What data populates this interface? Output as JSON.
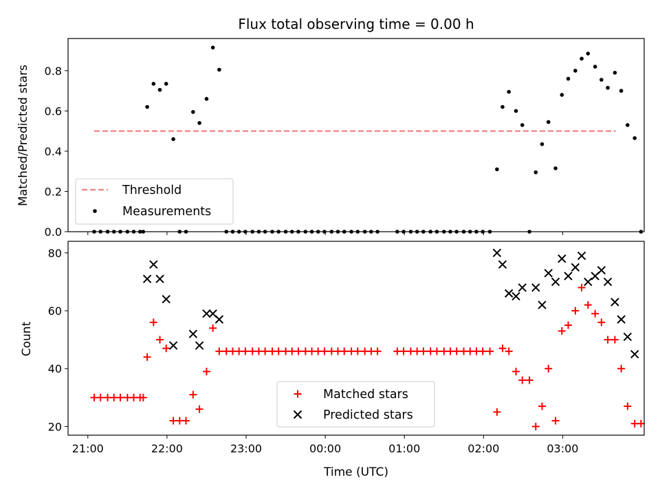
{
  "chart_data": [
    {
      "type": "scatter",
      "title": "Flux total observing time = 0.00 h",
      "xlabel": "",
      "ylabel": "Matched/Predicted stars",
      "ylim": [
        0,
        0.96
      ],
      "yticks": [
        0.0,
        0.2,
        0.4,
        0.6,
        0.8
      ],
      "ytick_labels": [
        "0.0",
        "0.2",
        "0.4",
        "0.6",
        "0.8"
      ],
      "x_unit": "hours since 21:00 UTC",
      "legend_position": "lower-left",
      "threshold": {
        "name": "Threshold",
        "value": 0.5,
        "x_range": [
          0.08,
          6.67
        ],
        "color": "#f08080"
      },
      "series": [
        {
          "name": "Measurements",
          "color": "#000000",
          "points": [
            [
              0.08,
              0
            ],
            [
              0.16,
              0
            ],
            [
              0.25,
              0
            ],
            [
              0.33,
              0
            ],
            [
              0.41,
              0
            ],
            [
              0.5,
              0
            ],
            [
              0.58,
              0
            ],
            [
              0.66,
              0
            ],
            [
              0.7,
              0
            ],
            [
              0.75,
              0.62
            ],
            [
              0.83,
              0.735
            ],
            [
              0.91,
              0.705
            ],
            [
              0.99,
              0.735
            ],
            [
              1.08,
              0.46
            ],
            [
              1.16,
              0
            ],
            [
              1.24,
              0
            ],
            [
              1.33,
              0.595
            ],
            [
              1.41,
              0.54
            ],
            [
              1.5,
              0.66
            ],
            [
              1.58,
              0.915
            ],
            [
              1.66,
              0.805
            ],
            [
              1.75,
              0
            ],
            [
              1.83,
              0
            ],
            [
              1.91,
              0
            ],
            [
              1.99,
              0
            ],
            [
              2.08,
              0
            ],
            [
              2.16,
              0
            ],
            [
              2.24,
              0
            ],
            [
              2.33,
              0
            ],
            [
              2.41,
              0
            ],
            [
              2.5,
              0
            ],
            [
              2.58,
              0
            ],
            [
              2.66,
              0
            ],
            [
              2.75,
              0
            ],
            [
              2.83,
              0
            ],
            [
              2.91,
              0
            ],
            [
              2.99,
              0
            ],
            [
              3.08,
              0
            ],
            [
              3.16,
              0
            ],
            [
              3.24,
              0
            ],
            [
              3.33,
              0
            ],
            [
              3.41,
              0
            ],
            [
              3.5,
              0
            ],
            [
              3.58,
              0
            ],
            [
              3.66,
              0
            ],
            [
              3.91,
              0
            ],
            [
              3.99,
              0
            ],
            [
              4.08,
              0
            ],
            [
              4.16,
              0
            ],
            [
              4.24,
              0
            ],
            [
              4.33,
              0
            ],
            [
              4.41,
              0
            ],
            [
              4.5,
              0
            ],
            [
              4.58,
              0
            ],
            [
              4.66,
              0
            ],
            [
              4.75,
              0
            ],
            [
              4.83,
              0
            ],
            [
              4.91,
              0
            ],
            [
              4.99,
              0
            ],
            [
              5.08,
              0
            ],
            [
              5.17,
              0.31
            ],
            [
              5.24,
              0.62
            ],
            [
              5.32,
              0.695
            ],
            [
              5.41,
              0.6
            ],
            [
              5.49,
              0.53
            ],
            [
              5.58,
              0
            ],
            [
              5.66,
              0.295
            ],
            [
              5.74,
              0.435
            ],
            [
              5.82,
              0.545
            ],
            [
              5.91,
              0.315
            ],
            [
              5.99,
              0.68
            ],
            [
              6.07,
              0.76
            ],
            [
              6.16,
              0.8
            ],
            [
              6.24,
              0.86
            ],
            [
              6.32,
              0.885
            ],
            [
              6.41,
              0.82
            ],
            [
              6.49,
              0.755
            ],
            [
              6.57,
              0.715
            ],
            [
              6.66,
              0.79
            ],
            [
              6.74,
              0.7
            ],
            [
              6.82,
              0.53
            ],
            [
              6.91,
              0.465
            ],
            [
              6.99,
              0
            ]
          ]
        }
      ]
    },
    {
      "type": "scatter",
      "title": "",
      "xlabel": "Time (UTC)",
      "ylabel": "Count",
      "ylim": [
        17,
        84
      ],
      "yticks": [
        20,
        40,
        60,
        80
      ],
      "ytick_labels": [
        "20",
        "40",
        "60",
        "80"
      ],
      "x_unit": "hours since 21:00 UTC",
      "xlim": [
        -0.25,
        7.03
      ],
      "xticks": [
        0,
        1,
        2,
        3,
        4,
        5,
        6
      ],
      "xtick_labels": [
        "21:00",
        "22:00",
        "23:00",
        "00:00",
        "01:00",
        "02:00",
        "03:00"
      ],
      "legend_position": "lower-center",
      "series": [
        {
          "name": "Matched stars",
          "marker": "plus",
          "color": "#ff0000",
          "points": [
            [
              0.08,
              30
            ],
            [
              0.16,
              30
            ],
            [
              0.25,
              30
            ],
            [
              0.33,
              30
            ],
            [
              0.41,
              30
            ],
            [
              0.5,
              30
            ],
            [
              0.58,
              30
            ],
            [
              0.66,
              30
            ],
            [
              0.7,
              30
            ],
            [
              0.75,
              44
            ],
            [
              0.83,
              56
            ],
            [
              0.91,
              50
            ],
            [
              0.99,
              47
            ],
            [
              1.08,
              22
            ],
            [
              1.16,
              22
            ],
            [
              1.24,
              22
            ],
            [
              1.33,
              31
            ],
            [
              1.41,
              26
            ],
            [
              1.5,
              39
            ],
            [
              1.58,
              54
            ],
            [
              1.66,
              46
            ],
            [
              1.75,
              46
            ],
            [
              1.83,
              46
            ],
            [
              1.91,
              46
            ],
            [
              1.99,
              46
            ],
            [
              2.08,
              46
            ],
            [
              2.16,
              46
            ],
            [
              2.24,
              46
            ],
            [
              2.33,
              46
            ],
            [
              2.41,
              46
            ],
            [
              2.5,
              46
            ],
            [
              2.58,
              46
            ],
            [
              2.66,
              46
            ],
            [
              2.75,
              46
            ],
            [
              2.83,
              46
            ],
            [
              2.91,
              46
            ],
            [
              2.99,
              46
            ],
            [
              3.08,
              46
            ],
            [
              3.16,
              46
            ],
            [
              3.24,
              46
            ],
            [
              3.33,
              46
            ],
            [
              3.41,
              46
            ],
            [
              3.5,
              46
            ],
            [
              3.58,
              46
            ],
            [
              3.66,
              46
            ],
            [
              3.91,
              46
            ],
            [
              3.99,
              46
            ],
            [
              4.08,
              46
            ],
            [
              4.16,
              46
            ],
            [
              4.24,
              46
            ],
            [
              4.33,
              46
            ],
            [
              4.41,
              46
            ],
            [
              4.5,
              46
            ],
            [
              4.58,
              46
            ],
            [
              4.66,
              46
            ],
            [
              4.75,
              46
            ],
            [
              4.83,
              46
            ],
            [
              4.91,
              46
            ],
            [
              4.99,
              46
            ],
            [
              5.08,
              46
            ],
            [
              5.17,
              25
            ],
            [
              5.24,
              47
            ],
            [
              5.32,
              46
            ],
            [
              5.41,
              39
            ],
            [
              5.49,
              36
            ],
            [
              5.58,
              36
            ],
            [
              5.66,
              20
            ],
            [
              5.74,
              27
            ],
            [
              5.82,
              40
            ],
            [
              5.91,
              22
            ],
            [
              5.99,
              53
            ],
            [
              6.07,
              55
            ],
            [
              6.16,
              60
            ],
            [
              6.24,
              68
            ],
            [
              6.32,
              62
            ],
            [
              6.41,
              59
            ],
            [
              6.49,
              56
            ],
            [
              6.57,
              50
            ],
            [
              6.66,
              50
            ],
            [
              6.74,
              40
            ],
            [
              6.82,
              27
            ],
            [
              6.91,
              21
            ],
            [
              6.99,
              21
            ]
          ]
        },
        {
          "name": "Predicted stars",
          "marker": "x",
          "color": "#000000",
          "points": [
            [
              0.75,
              71
            ],
            [
              0.83,
              76
            ],
            [
              0.91,
              71
            ],
            [
              0.99,
              64
            ],
            [
              1.08,
              48
            ],
            [
              1.33,
              52
            ],
            [
              1.41,
              48
            ],
            [
              1.5,
              59
            ],
            [
              1.58,
              59
            ],
            [
              1.66,
              57
            ],
            [
              5.17,
              80
            ],
            [
              5.24,
              76
            ],
            [
              5.32,
              66
            ],
            [
              5.41,
              65
            ],
            [
              5.49,
              68
            ],
            [
              5.66,
              68
            ],
            [
              5.74,
              62
            ],
            [
              5.82,
              73
            ],
            [
              5.91,
              70
            ],
            [
              5.99,
              78
            ],
            [
              6.07,
              72
            ],
            [
              6.16,
              75
            ],
            [
              6.24,
              79
            ],
            [
              6.32,
              70
            ],
            [
              6.41,
              72
            ],
            [
              6.49,
              74
            ],
            [
              6.57,
              70
            ],
            [
              6.66,
              63
            ],
            [
              6.74,
              57
            ],
            [
              6.82,
              51
            ],
            [
              6.91,
              45
            ]
          ]
        }
      ]
    }
  ]
}
